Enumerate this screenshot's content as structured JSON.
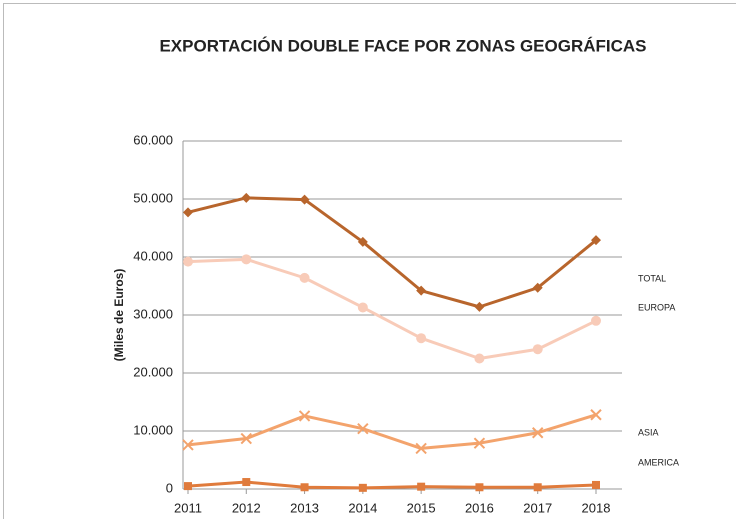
{
  "chart_data": {
    "type": "line",
    "title": "EXPORTACIÓN DOUBLE FACE POR ZONAS GEOGRÁFICAS",
    "y_label": "(Miles de Euros)",
    "categories": [
      "2011",
      "2012",
      "2013",
      "2014",
      "2015",
      "2016",
      "2017",
      "2018"
    ],
    "series": [
      {
        "name": "TOTAL",
        "color": "#b8652c",
        "marker": "diamond",
        "values": [
          47700,
          50200,
          49900,
          42600,
          34200,
          31400,
          34700,
          42900
        ]
      },
      {
        "name": "EUROPA",
        "color": "#f8cbb8",
        "marker": "circle",
        "values": [
          39200,
          39600,
          36400,
          31300,
          26000,
          22500,
          24100,
          29000
        ]
      },
      {
        "name": "ASIA",
        "color": "#f3a36c",
        "marker": "x",
        "values": [
          7600,
          8700,
          12600,
          10400,
          7000,
          7900,
          9700,
          12800
        ]
      },
      {
        "name": "AMERICA",
        "color": "#e07b3c",
        "marker": "square",
        "values": [
          500,
          1200,
          300,
          200,
          400,
          300,
          300,
          700
        ]
      }
    ],
    "ylim": [
      0,
      60000
    ],
    "yticks": [
      {
        "value": 0,
        "label": "0"
      },
      {
        "value": 10000,
        "label": "10.000"
      },
      {
        "value": 20000,
        "label": "20.000"
      },
      {
        "value": 30000,
        "label": "30.000"
      },
      {
        "value": 40000,
        "label": "40.000"
      },
      {
        "value": 50000,
        "label": "50.000"
      },
      {
        "value": 60000,
        "label": "60.000"
      }
    ],
    "grid": true
  }
}
